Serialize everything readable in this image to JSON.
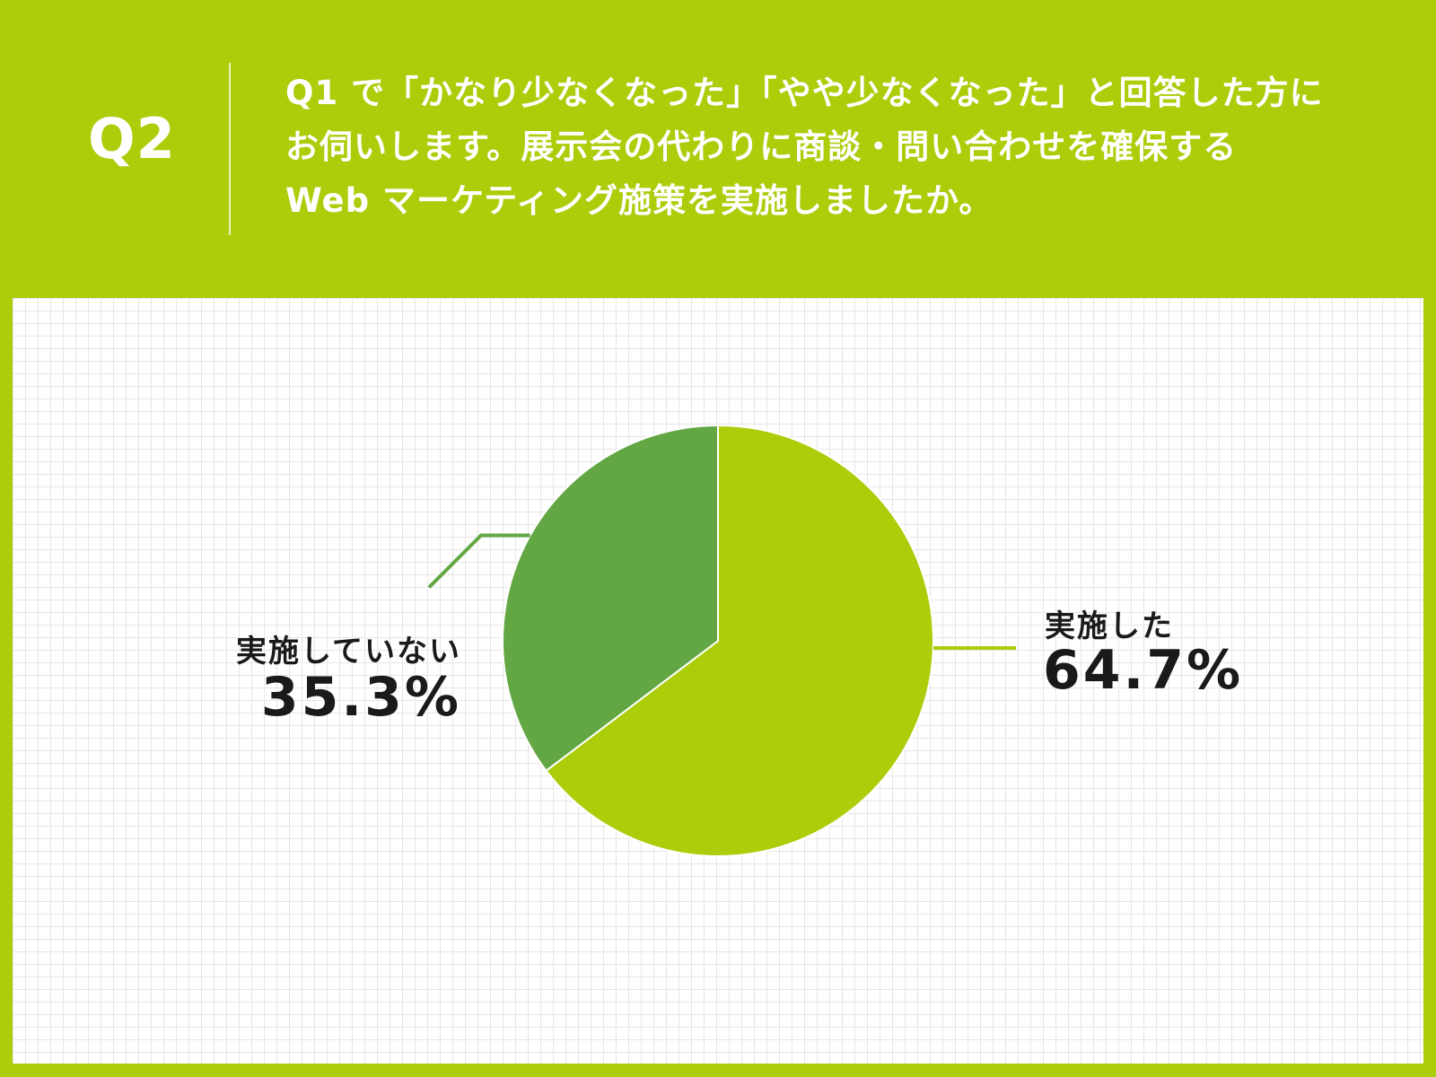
{
  "header": {
    "q_label": "Q2",
    "question_lines": [
      "Q1 で「かなり少なくなった」「やや少なくなった」と回答した方に",
      "お伺いします。展示会の代わりに商談・問い合わせを確保する",
      "Web マーケティング施策を実施しましたか。"
    ]
  },
  "colors": {
    "background": "#abcd0a",
    "slice_implemented": "#abcd0a",
    "slice_not_implemented": "#62a744"
  },
  "chart_data": {
    "type": "pie",
    "start_angle_deg": 0,
    "direction": "clockwise",
    "slices": [
      {
        "label": "実施した",
        "value": 64.7,
        "value_label": "64.7%",
        "color": "#abcd0a"
      },
      {
        "label": "実施していない",
        "value": 35.3,
        "value_label": "35.3%",
        "color": "#62a744"
      }
    ]
  }
}
